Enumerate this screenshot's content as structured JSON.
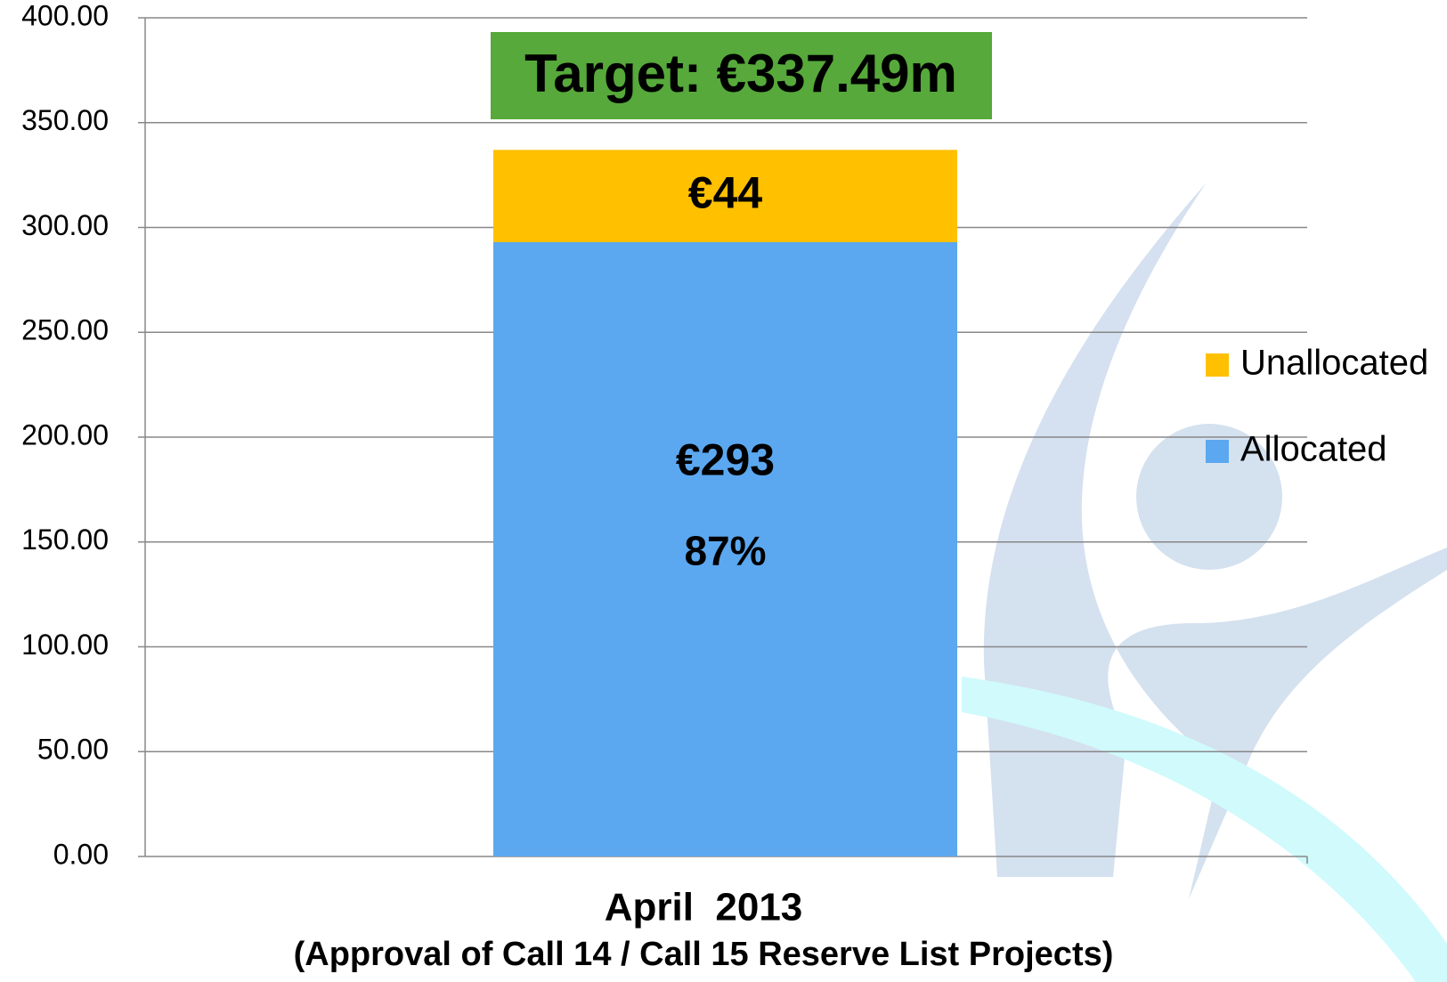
{
  "chart_data": {
    "type": "stacked_bar",
    "categories": [
      "April  2013"
    ],
    "x_label": "(Approval of Call 14 / Call 15 Reserve List Projects)",
    "series": [
      {
        "name": "Allocated",
        "color": "#5ba8f0",
        "values": [
          293
        ],
        "value_labels": [
          "€293"
        ]
      },
      {
        "name": "Unallocated",
        "color": "#ffc000",
        "values": [
          44
        ],
        "value_labels": [
          "€44"
        ]
      }
    ],
    "percent_label": "87%",
    "target_label": "Target: €337.49m",
    "ylim": [
      0,
      400
    ],
    "yticks": [
      {
        "value": 0,
        "label": "0.00"
      },
      {
        "value": 50,
        "label": "50.00"
      },
      {
        "value": 100,
        "label": "100.00"
      },
      {
        "value": 150,
        "label": "150.00"
      },
      {
        "value": 200,
        "label": "200.00"
      },
      {
        "value": 250,
        "label": "250.00"
      },
      {
        "value": 300,
        "label": "300.00"
      },
      {
        "value": 350,
        "label": "350.00"
      },
      {
        "value": 400,
        "label": "400.00"
      }
    ],
    "grid": true,
    "legend": "right"
  }
}
